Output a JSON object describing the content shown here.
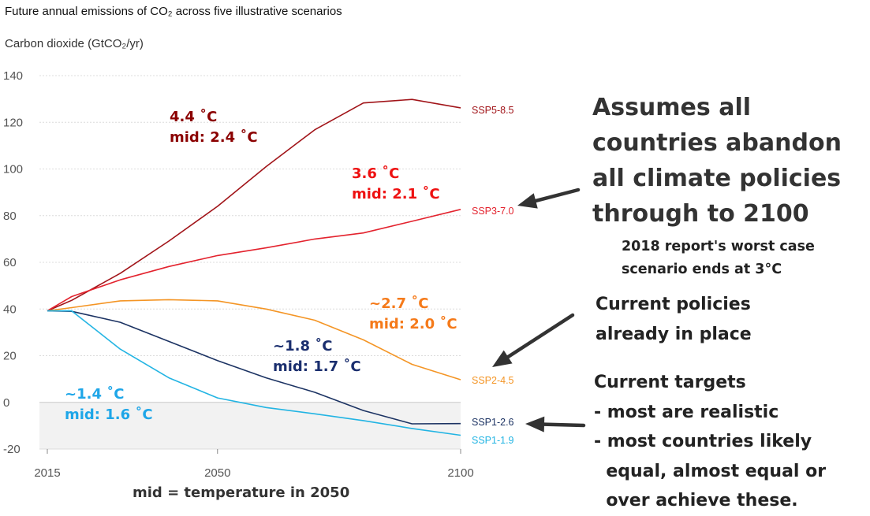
{
  "chart_data": {
    "type": "line",
    "title": "Future annual emissions of CO₂ across five illustrative scenarios",
    "subtitle": "Carbon dioxide (GtCO₂/yr)",
    "xlim": [
      2015,
      2100
    ],
    "ylim": [
      -20,
      140
    ],
    "x_ticks": [
      2015,
      2050,
      2100
    ],
    "y_ticks": [
      140,
      120,
      100,
      80,
      60,
      40,
      20,
      0,
      -20
    ],
    "grid": true,
    "series": [
      {
        "name": "SSP5-8.5",
        "color": "#a11419",
        "x": [
          2015,
          2020,
          2030,
          2040,
          2050,
          2060,
          2070,
          2080,
          2090,
          2100
        ],
        "values": [
          39.2,
          43.7,
          55.3,
          69.1,
          84.0,
          101.0,
          116.8,
          128.3,
          129.8,
          126.2
        ]
      },
      {
        "name": "SSP3-7.0",
        "color": "#e3232e",
        "x": [
          2015,
          2020,
          2030,
          2040,
          2050,
          2060,
          2070,
          2080,
          2090,
          2100
        ],
        "values": [
          39.2,
          45.3,
          52.5,
          58.2,
          62.9,
          66.2,
          70.0,
          72.6,
          77.6,
          82.7
        ]
      },
      {
        "name": "SSP2-4.5",
        "color": "#f49525",
        "x": [
          2015,
          2020,
          2030,
          2040,
          2050,
          2060,
          2070,
          2080,
          2090,
          2100
        ],
        "values": [
          39.2,
          40.6,
          43.5,
          44.0,
          43.5,
          40.0,
          35.2,
          26.8,
          16.3,
          9.7
        ]
      },
      {
        "name": "SSP1-2.6",
        "color": "#1c3363",
        "x": [
          2015,
          2020,
          2030,
          2040,
          2050,
          2060,
          2070,
          2080,
          2090,
          2100
        ],
        "values": [
          39.2,
          39.0,
          34.3,
          26.1,
          17.9,
          10.5,
          4.3,
          -3.5,
          -9.2,
          -9.1
        ]
      },
      {
        "name": "SSP1-1.9",
        "color": "#22b4e3",
        "x": [
          2015,
          2020,
          2030,
          2040,
          2050,
          2060,
          2070,
          2080,
          2090,
          2100
        ],
        "values": [
          39.2,
          39.2,
          22.8,
          10.5,
          1.9,
          -2.2,
          -4.9,
          -7.8,
          -11.2,
          -14.1
        ]
      }
    ]
  },
  "annotations": {
    "ssp585_temp": "4.4 ˚C",
    "ssp585_mid": "mid: 2.4 ˚C",
    "ssp370_temp": "3.6 ˚C",
    "ssp370_mid": "mid: 2.1 ˚C",
    "ssp245_temp": "~2.7 ˚C",
    "ssp245_mid": "mid: 2.0 ˚C",
    "ssp126_temp": "~1.8  ˚C",
    "ssp126_mid": "mid: 1.7  ˚C",
    "ssp119_temp": "~1.4 ˚C",
    "ssp119_mid": "mid: 1.6 ˚C",
    "colors": {
      "ssp585": "#8b0000",
      "ssp370": "#ee1111",
      "ssp245": "#f57a1a",
      "ssp126": "#1a2e6e",
      "ssp119": "#1ea6e8"
    }
  },
  "side_notes": {
    "worst_case_lines": [
      "Assumes all",
      "countries abandon",
      "all climate policies",
      "through to 2100"
    ],
    "report_2018_lines": [
      "2018 report's worst case",
      "scenario ends at 3°C"
    ],
    "current_policies_lines": [
      "Current policies",
      "already in place"
    ],
    "current_targets_lines": [
      "Current targets",
      "- most are realistic",
      "- most countries likely",
      "  equal, almost equal or",
      "  over achieve these."
    ]
  },
  "mid_note": "mid = temperature in 2050",
  "arrow_color": "#333333"
}
